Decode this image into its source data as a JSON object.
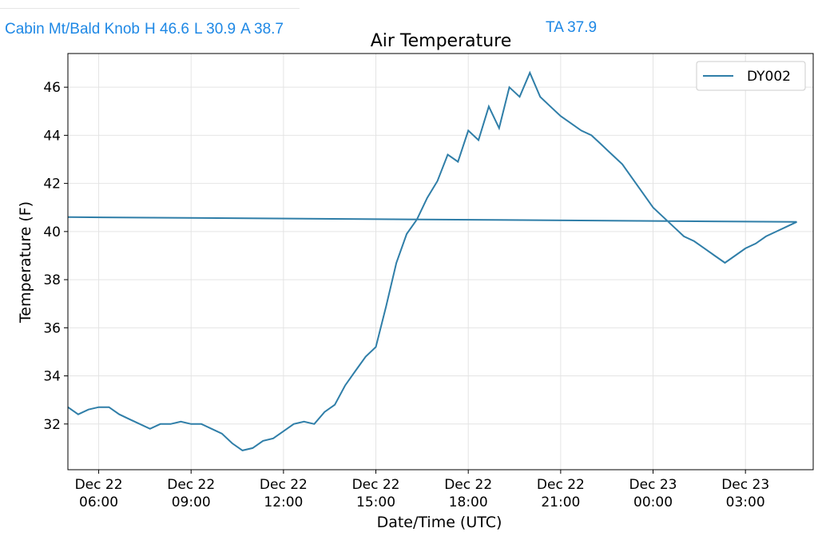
{
  "header": {
    "station": "Cabin Mt/Bald Knob",
    "high": "H 46.6",
    "low": "L 30.9",
    "average": "A 38.7",
    "ta": "TA 37.9",
    "color": "#1e88e5"
  },
  "chart_data": {
    "type": "line",
    "title": "Air Temperature",
    "xlabel": "Date/Time (UTC)",
    "ylabel": "Temperature (F)",
    "ylim": [
      30.1,
      47.4
    ],
    "xlim_hours": [
      5.0,
      29.2
    ],
    "grid": true,
    "legend_position": "top-right",
    "y_ticks": [
      "32",
      "34",
      "36",
      "38",
      "40",
      "42",
      "44",
      "46"
    ],
    "x_ticks": [
      {
        "line1": "Dec 22",
        "line2": "06:00"
      },
      {
        "line1": "Dec 22",
        "line2": "09:00"
      },
      {
        "line1": "Dec 22",
        "line2": "12:00"
      },
      {
        "line1": "Dec 22",
        "line2": "15:00"
      },
      {
        "line1": "Dec 22",
        "line2": "18:00"
      },
      {
        "line1": "Dec 22",
        "line2": "21:00"
      },
      {
        "line1": "Dec 23",
        "line2": "00:00"
      },
      {
        "line1": "Dec 23",
        "line2": "03:00"
      }
    ],
    "series": [
      {
        "name": "DY002",
        "color": "#2f7ea8",
        "x": [
          "05:00",
          "05:20",
          "05:40",
          "06:00",
          "06:20",
          "06:40",
          "07:00",
          "07:20",
          "07:40",
          "08:00",
          "08:20",
          "08:40",
          "09:00",
          "09:20",
          "09:40",
          "10:00",
          "10:20",
          "10:40",
          "11:00",
          "11:20",
          "11:40",
          "12:00",
          "12:20",
          "12:40",
          "13:00",
          "13:20",
          "13:40",
          "14:00",
          "14:20",
          "14:40",
          "15:00",
          "15:20",
          "15:40",
          "16:00",
          "16:20",
          "16:40",
          "17:00",
          "17:20",
          "17:40",
          "18:00",
          "18:20",
          "18:40",
          "19:00",
          "19:20",
          "19:40",
          "20:00",
          "20:20",
          "20:40",
          "21:00",
          "21:20",
          "21:40",
          "22:00",
          "22:20",
          "22:40",
          "23:00",
          "23:20",
          "23:40",
          "00:00",
          "00:20",
          "00:40",
          "01:00",
          "01:20",
          "01:40",
          "02:00",
          "02:20",
          "02:40",
          "03:00",
          "03:20",
          "03:40",
          "04:00",
          "04:20",
          "04:40",
          "05:00"
        ],
        "values": [
          32.7,
          32.4,
          32.6,
          32.7,
          32.7,
          32.4,
          32.2,
          32.0,
          31.8,
          32.0,
          32.0,
          32.1,
          32.0,
          32.0,
          31.8,
          31.6,
          31.2,
          30.9,
          31.0,
          31.3,
          31.4,
          31.7,
          32.0,
          32.1,
          32.0,
          32.5,
          32.8,
          33.6,
          34.2,
          34.8,
          35.2,
          36.9,
          38.7,
          39.9,
          40.5,
          41.4,
          42.1,
          43.2,
          42.9,
          44.2,
          43.8,
          45.2,
          44.3,
          46.0,
          45.6,
          46.6,
          45.6,
          45.2,
          44.8,
          44.5,
          44.2,
          44.0,
          43.6,
          43.2,
          42.8,
          42.2,
          41.6,
          41.0,
          40.6,
          40.2,
          39.8,
          39.6,
          39.3,
          39.0,
          38.7,
          39.0,
          39.3,
          39.5,
          39.8,
          40.0,
          40.2,
          40.4,
          40.6
        ]
      }
    ]
  }
}
